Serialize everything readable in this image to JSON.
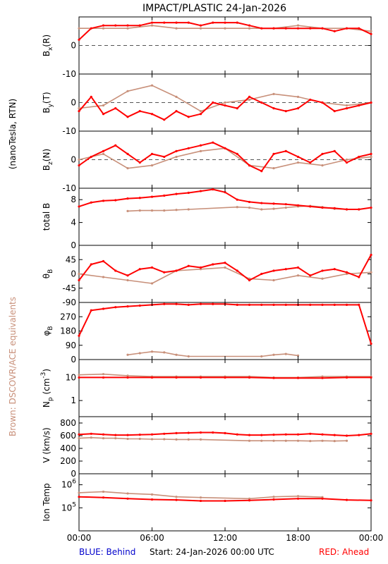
{
  "title": "IMPACT/PLASTIC   24-Jan-2026",
  "y_group_label": "(nanoTesla, RTN)",
  "side_note": "Brown: DSCOVR/ACE equivalents",
  "footer": {
    "blue": "BLUE: Behind",
    "start": "Start: 24-Jan-2026 00:00 UTC",
    "red": "RED: Ahead"
  },
  "colors": {
    "red": "#ff0000",
    "brown": "#c8907a",
    "blue": "#0000cc",
    "axis": "#000000"
  },
  "chart_data": [
    {
      "type": "scatter",
      "id": "bx",
      "ylabel": "B_x(R)",
      "ylim": [
        -10,
        10
      ],
      "yticks": [
        "0",
        "-10"
      ],
      "zero_line": true,
      "series": [
        {
          "color": "red",
          "x": [
            0,
            1,
            2,
            3,
            4,
            5,
            6,
            7,
            8,
            9,
            10,
            11,
            12,
            13,
            14,
            15,
            16,
            17,
            18,
            19,
            20,
            21,
            22,
            23,
            24
          ],
          "values": [
            2,
            6,
            7,
            7,
            7,
            7,
            8,
            8,
            8,
            8,
            7,
            8,
            8,
            8,
            7,
            6,
            6,
            6,
            6,
            6,
            6,
            5,
            6,
            6,
            4
          ]
        },
        {
          "color": "brown",
          "x": [
            0,
            2,
            4,
            6,
            8,
            10,
            12,
            14,
            16,
            18,
            20,
            22,
            24
          ],
          "values": [
            6,
            6,
            6,
            7,
            6,
            6,
            6,
            6,
            6,
            7,
            6,
            6,
            5
          ]
        }
      ]
    },
    {
      "type": "scatter",
      "id": "by",
      "ylabel": "B_y(T)",
      "ylim": [
        -10,
        10
      ],
      "yticks": [
        "0",
        "-10"
      ],
      "zero_line": true,
      "series": [
        {
          "color": "red",
          "x": [
            0,
            1,
            2,
            3,
            4,
            5,
            6,
            7,
            8,
            9,
            10,
            11,
            12,
            13,
            14,
            15,
            16,
            17,
            18,
            19,
            20,
            21,
            22,
            23,
            24
          ],
          "values": [
            -3,
            2,
            -4,
            -2,
            -5,
            -3,
            -4,
            -6,
            -3,
            -5,
            -4,
            0,
            -1,
            -2,
            2,
            0,
            -2,
            -3,
            -2,
            1,
            0,
            -3,
            -2,
            -1,
            0
          ]
        },
        {
          "color": "brown",
          "x": [
            0,
            2,
            4,
            6,
            8,
            10,
            12,
            14,
            16,
            18,
            20,
            22,
            24
          ],
          "values": [
            -2,
            -1,
            4,
            6,
            2,
            -3,
            0,
            1,
            3,
            2,
            0,
            -1,
            0
          ]
        }
      ]
    },
    {
      "type": "scatter",
      "id": "bz",
      "ylabel": "B_z(N)",
      "ylim": [
        -10,
        10
      ],
      "yticks": [
        "0",
        "-10"
      ],
      "zero_line": true,
      "series": [
        {
          "color": "red",
          "x": [
            0,
            1,
            2,
            3,
            4,
            5,
            6,
            7,
            8,
            9,
            10,
            11,
            12,
            13,
            14,
            15,
            16,
            17,
            18,
            19,
            20,
            21,
            22,
            23,
            24
          ],
          "values": [
            -2,
            1,
            3,
            5,
            2,
            -1,
            2,
            1,
            3,
            4,
            5,
            6,
            4,
            2,
            -2,
            -4,
            2,
            3,
            1,
            -1,
            2,
            3,
            -1,
            1,
            2
          ]
        },
        {
          "color": "brown",
          "x": [
            0,
            2,
            4,
            6,
            8,
            10,
            12,
            14,
            16,
            18,
            20,
            22,
            24
          ],
          "values": [
            0,
            2,
            -3,
            -2,
            1,
            3,
            4,
            -2,
            -3,
            -1,
            -2,
            0,
            1
          ]
        }
      ]
    },
    {
      "type": "line",
      "id": "btot",
      "ylabel": "total B",
      "ylim": [
        0,
        10
      ],
      "yticks": [
        "8",
        "4",
        "0"
      ],
      "zero_line": false,
      "series": [
        {
          "color": "red",
          "x": [
            0,
            1,
            2,
            3,
            4,
            5,
            6,
            7,
            8,
            9,
            10,
            11,
            12,
            13,
            14,
            15,
            16,
            17,
            18,
            19,
            20,
            21,
            22,
            23,
            24
          ],
          "values": [
            6.8,
            7.5,
            7.8,
            7.9,
            8.2,
            8.3,
            8.5,
            8.7,
            9.0,
            9.2,
            9.5,
            9.8,
            9.3,
            8.0,
            7.6,
            7.4,
            7.3,
            7.2,
            7.0,
            6.8,
            6.6,
            6.5,
            6.3,
            6.3,
            6.6
          ]
        },
        {
          "color": "brown",
          "x": [
            4,
            5,
            6,
            7,
            8,
            9,
            13,
            14,
            15,
            16,
            17,
            18,
            19,
            20,
            21,
            22,
            23
          ],
          "values": [
            6.0,
            6.1,
            6.1,
            6.1,
            6.2,
            6.3,
            6.7,
            6.6,
            6.3,
            6.4,
            6.6,
            6.8,
            6.9,
            6.7,
            6.4,
            6.3,
            6.3
          ]
        }
      ]
    },
    {
      "type": "scatter",
      "id": "theta",
      "ylabel": "θ_B",
      "ylim": [
        -90,
        90
      ],
      "yticks": [
        "45",
        "0",
        "-45",
        "-90"
      ],
      "zero_line": false,
      "series": [
        {
          "color": "red",
          "x": [
            0,
            1,
            2,
            3,
            4,
            5,
            6,
            7,
            8,
            9,
            10,
            11,
            12,
            13,
            14,
            15,
            16,
            17,
            18,
            19,
            20,
            21,
            22,
            23,
            24
          ],
          "values": [
            -20,
            30,
            40,
            10,
            -5,
            15,
            20,
            5,
            10,
            25,
            20,
            30,
            35,
            10,
            -20,
            0,
            10,
            15,
            20,
            -5,
            10,
            15,
            5,
            -10,
            60
          ]
        },
        {
          "color": "brown",
          "x": [
            0,
            2,
            4,
            6,
            8,
            10,
            12,
            14,
            16,
            18,
            20,
            22,
            24
          ],
          "values": [
            0,
            -10,
            -20,
            -30,
            10,
            15,
            20,
            -15,
            -20,
            -5,
            -15,
            0,
            5
          ]
        }
      ]
    },
    {
      "type": "scatter",
      "id": "phi",
      "ylabel": "φ_B",
      "ylim": [
        0,
        360
      ],
      "yticks": [
        "270",
        "180",
        "90",
        "0"
      ],
      "zero_line": false,
      "series": [
        {
          "color": "red",
          "x": [
            0,
            1,
            2,
            3,
            4,
            5,
            6,
            7,
            8,
            9,
            10,
            11,
            12,
            13,
            14,
            15,
            16,
            17,
            18,
            19,
            20,
            21,
            22,
            23,
            24
          ],
          "values": [
            150,
            310,
            320,
            330,
            335,
            340,
            345,
            350,
            350,
            345,
            350,
            350,
            350,
            345,
            345,
            345,
            345,
            345,
            345,
            345,
            345,
            345,
            345,
            345,
            100
          ]
        },
        {
          "color": "brown",
          "x": [
            4,
            5,
            6,
            7,
            8,
            9,
            15,
            16,
            17,
            18
          ],
          "values": [
            30,
            40,
            50,
            45,
            30,
            20,
            20,
            30,
            35,
            25
          ]
        }
      ]
    },
    {
      "type": "line",
      "id": "np",
      "ylabel": "N_p (cm^-3)",
      "yscale": "log",
      "ylim": [
        0.2,
        60
      ],
      "yticks": [
        "10",
        "1"
      ],
      "zero_line": false,
      "series": [
        {
          "color": "red",
          "x": [
            0,
            2,
            4,
            6,
            8,
            10,
            12,
            14,
            16,
            18,
            20,
            22,
            24
          ],
          "values": [
            10,
            10,
            10,
            10,
            10,
            10,
            10,
            10,
            9.5,
            9.5,
            9.5,
            10,
            10
          ]
        },
        {
          "color": "brown",
          "x": [
            0,
            2,
            4,
            6,
            8,
            10,
            12,
            14,
            16,
            18,
            20,
            22,
            24
          ],
          "values": [
            13,
            14,
            12,
            11,
            11,
            11,
            11,
            11,
            10,
            10,
            11,
            11,
            11
          ]
        }
      ]
    },
    {
      "type": "line",
      "id": "v",
      "ylabel": "V (km/s)",
      "ylim": [
        0,
        900
      ],
      "yticks": [
        "800",
        "600",
        "400",
        "200",
        "0"
      ],
      "zero_line": false,
      "series": [
        {
          "color": "red",
          "x": [
            0,
            1,
            2,
            3,
            4,
            5,
            6,
            7,
            8,
            9,
            10,
            11,
            12,
            13,
            14,
            15,
            16,
            17,
            18,
            19,
            20,
            21,
            22,
            23,
            24
          ],
          "values": [
            620,
            630,
            620,
            610,
            610,
            615,
            620,
            630,
            640,
            645,
            650,
            650,
            640,
            620,
            610,
            610,
            615,
            620,
            620,
            630,
            620,
            610,
            600,
            610,
            630
          ]
        },
        {
          "color": "brown",
          "x": [
            0,
            1,
            2,
            3,
            4,
            5,
            6,
            7,
            8,
            9,
            10,
            14,
            15,
            16,
            17,
            18,
            19,
            20,
            21,
            22
          ],
          "values": [
            560,
            570,
            560,
            560,
            550,
            550,
            545,
            545,
            540,
            540,
            540,
            520,
            520,
            520,
            520,
            520,
            515,
            520,
            515,
            520
          ]
        }
      ]
    },
    {
      "type": "line",
      "id": "temp",
      "ylabel": "Ion Temp",
      "yscale": "log",
      "ylim": [
        10000,
        3000000
      ],
      "yticks": [
        "10^6",
        "10^5"
      ],
      "zero_line": false,
      "series": [
        {
          "color": "red",
          "x": [
            0,
            2,
            4,
            6,
            8,
            10,
            12,
            14,
            16,
            18,
            20,
            22,
            24
          ],
          "values": [
            300000,
            280000,
            250000,
            230000,
            220000,
            200000,
            200000,
            210000,
            230000,
            250000,
            250000,
            220000,
            210000
          ]
        },
        {
          "color": "brown",
          "x": [
            0,
            2,
            4,
            6,
            8,
            10,
            14,
            16,
            18,
            20
          ],
          "values": [
            450000,
            500000,
            420000,
            380000,
            300000,
            280000,
            250000,
            300000,
            320000,
            290000
          ]
        }
      ]
    }
  ],
  "x_axis": {
    "ticks": [
      "00:00",
      "06:00",
      "12:00",
      "18:00",
      "00:00"
    ],
    "tick_hours": [
      0,
      6,
      12,
      18,
      24
    ]
  }
}
